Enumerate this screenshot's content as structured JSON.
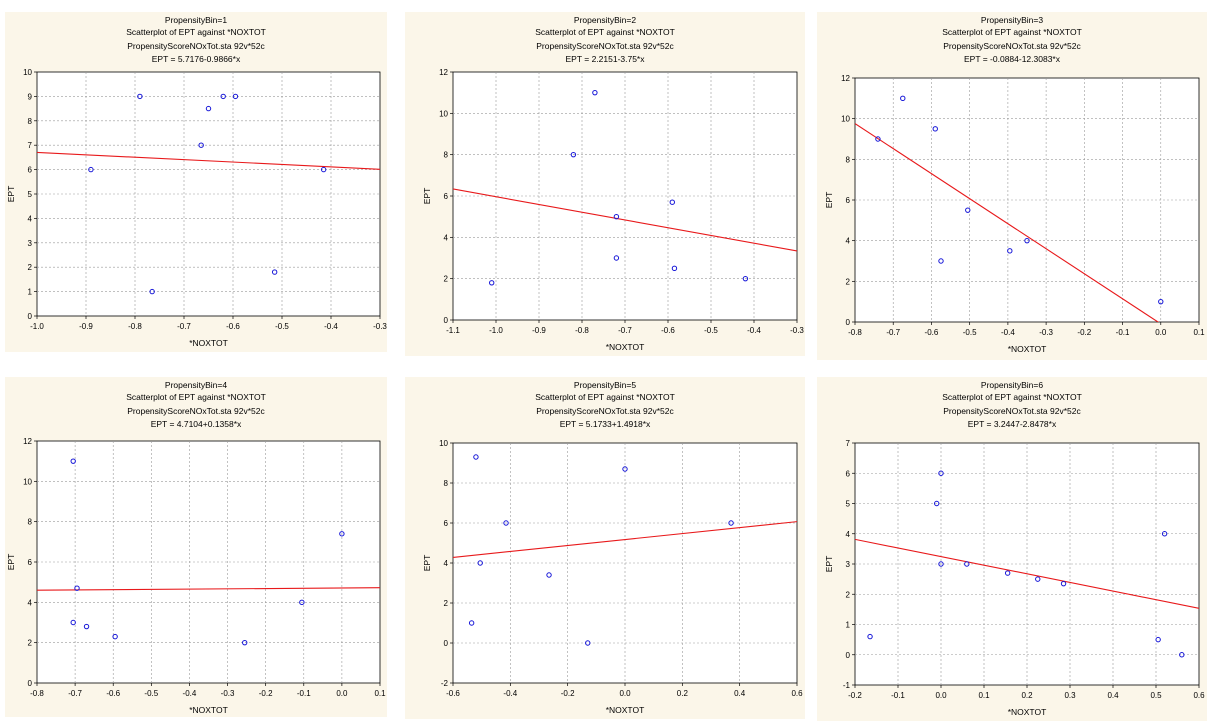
{
  "chart_data": [
    {
      "type": "scatter",
      "title": "PropensityBin=1",
      "subtitle": "Scatterplot of EPT against *NOXTOT",
      "source": "PropensityScoreNOxTot.sta 92v*52c",
      "equation": "EPT = 5.7176-0.9866*x",
      "xlabel": "*NOXTOT",
      "ylabel": "EPT",
      "xlim": [
        -1.0,
        -0.3
      ],
      "ylim": [
        0,
        10
      ],
      "xticks": [
        -1.0,
        -0.9,
        -0.8,
        -0.7,
        -0.6,
        -0.5,
        -0.4,
        -0.3
      ],
      "xtick_labels": [
        "-1.0",
        "-0.9",
        "-0.8",
        "-0.7",
        "-0.6",
        "-0.5",
        "-0.4",
        "-0.3"
      ],
      "yticks": [
        0,
        1,
        2,
        3,
        4,
        5,
        6,
        7,
        8,
        9,
        10
      ],
      "ytick_labels": [
        "0",
        "1",
        "2",
        "3",
        "4",
        "5",
        "6",
        "7",
        "8",
        "9",
        "10"
      ],
      "regression": {
        "intercept": 5.7176,
        "slope": -0.9866
      },
      "points": [
        [
          -0.89,
          6
        ],
        [
          -0.79,
          9
        ],
        [
          -0.765,
          1
        ],
        [
          -0.665,
          7
        ],
        [
          -0.65,
          8.5
        ],
        [
          -0.62,
          9
        ],
        [
          -0.595,
          9
        ],
        [
          -0.515,
          1.8
        ],
        [
          -0.415,
          6
        ]
      ],
      "grid": true
    },
    {
      "type": "scatter",
      "title": "PropensityBin=2",
      "subtitle": "Scatterplot of EPT against *NOXTOT",
      "source": "PropensityScoreNOxTot.sta 92v*52c",
      "equation": "EPT = 2.2151-3.75*x",
      "xlabel": "*NOXTOT",
      "ylabel": "EPT",
      "xlim": [
        -1.1,
        -0.3
      ],
      "ylim": [
        0,
        12
      ],
      "xticks": [
        -1.1,
        -1.0,
        -0.9,
        -0.8,
        -0.7,
        -0.6,
        -0.5,
        -0.4,
        -0.3
      ],
      "xtick_labels": [
        "-1.1",
        "-1.0",
        "-0.9",
        "-0.8",
        "-0.7",
        "-0.6",
        "-0.5",
        "-0.4",
        "-0.3"
      ],
      "yticks": [
        0,
        2,
        4,
        6,
        8,
        10,
        12
      ],
      "ytick_labels": [
        "0",
        "2",
        "4",
        "6",
        "8",
        "10",
        "12"
      ],
      "regression": {
        "intercept": 2.2151,
        "slope": -3.75
      },
      "points": [
        [
          -1.01,
          1.8
        ],
        [
          -0.82,
          8
        ],
        [
          -0.77,
          11
        ],
        [
          -0.72,
          5
        ],
        [
          -0.72,
          3
        ],
        [
          -0.59,
          5.7
        ],
        [
          -0.585,
          2.5
        ],
        [
          -0.42,
          2
        ]
      ],
      "grid": true
    },
    {
      "type": "scatter",
      "title": "PropensityBin=3",
      "subtitle": "Scatterplot of EPT against *NOXTOT",
      "source": "PropensityScoreNOxTot.sta 92v*52c",
      "equation": "EPT = -0.0884-12.3083*x",
      "xlabel": "*NOXTOT",
      "ylabel": "EPT",
      "xlim": [
        -0.8,
        0.1
      ],
      "ylim": [
        0,
        12
      ],
      "xticks": [
        -0.8,
        -0.7,
        -0.6,
        -0.5,
        -0.4,
        -0.3,
        -0.2,
        -0.1,
        0.0,
        0.1
      ],
      "xtick_labels": [
        "-0.8",
        "-0.7",
        "-0.6",
        "-0.5",
        "-0.4",
        "-0.3",
        "-0.2",
        "-0.1",
        "0.0",
        "0.1"
      ],
      "yticks": [
        0,
        2,
        4,
        6,
        8,
        10,
        12
      ],
      "ytick_labels": [
        "0",
        "2",
        "4",
        "6",
        "8",
        "10",
        "12"
      ],
      "regression": {
        "intercept": -0.0884,
        "slope": -12.3083
      },
      "points": [
        [
          -0.74,
          9
        ],
        [
          -0.675,
          11
        ],
        [
          -0.59,
          9.5
        ],
        [
          -0.575,
          3
        ],
        [
          -0.505,
          5.5
        ],
        [
          -0.395,
          3.5
        ],
        [
          -0.35,
          4
        ],
        [
          0.0,
          1
        ]
      ],
      "grid": true
    },
    {
      "type": "scatter",
      "title": "PropensityBin=4",
      "subtitle": "Scatterplot of EPT against *NOXTOT",
      "source": "PropensityScoreNOxTot.sta 92v*52c",
      "equation": "EPT = 4.7104+0.1358*x",
      "xlabel": "*NOXTOT",
      "ylabel": "EPT",
      "xlim": [
        -0.8,
        0.1
      ],
      "ylim": [
        0,
        12
      ],
      "xticks": [
        -0.8,
        -0.7,
        -0.6,
        -0.5,
        -0.4,
        -0.3,
        -0.2,
        -0.1,
        0.0,
        0.1
      ],
      "xtick_labels": [
        "-0.8",
        "-0.7",
        "-0.6",
        "-0.5",
        "-0.4",
        "-0.3",
        "-0.2",
        "-0.1",
        "0.0",
        "0.1"
      ],
      "yticks": [
        0,
        2,
        4,
        6,
        8,
        10,
        12
      ],
      "ytick_labels": [
        "0",
        "2",
        "4",
        "6",
        "8",
        "10",
        "12"
      ],
      "regression": {
        "intercept": 4.7104,
        "slope": 0.1358
      },
      "points": [
        [
          -0.705,
          11
        ],
        [
          -0.705,
          3
        ],
        [
          -0.695,
          4.7
        ],
        [
          -0.67,
          2.8
        ],
        [
          -0.595,
          2.3
        ],
        [
          -0.255,
          2
        ],
        [
          -0.105,
          4
        ],
        [
          0.0,
          7.4
        ]
      ],
      "grid": true
    },
    {
      "type": "scatter",
      "title": "PropensityBin=5",
      "subtitle": "Scatterplot of EPT against *NOXTOT",
      "source": "PropensityScoreNOxTot.sta 92v*52c",
      "equation": "EPT = 5.1733+1.4918*x",
      "xlabel": "*NOXTOT",
      "ylabel": "EPT",
      "xlim": [
        -0.6,
        0.6
      ],
      "ylim": [
        -2,
        10
      ],
      "xticks": [
        -0.6,
        -0.4,
        -0.2,
        0.0,
        0.2,
        0.4,
        0.6
      ],
      "xtick_labels": [
        "-0.6",
        "-0.4",
        "-0.2",
        "0.0",
        "0.2",
        "0.4",
        "0.6"
      ],
      "yticks": [
        -2,
        0,
        2,
        4,
        6,
        8,
        10
      ],
      "ytick_labels": [
        "-2",
        "0",
        "2",
        "4",
        "6",
        "8",
        "10"
      ],
      "regression": {
        "intercept": 5.1733,
        "slope": 1.4918
      },
      "points": [
        [
          -0.535,
          1
        ],
        [
          -0.52,
          9.3
        ],
        [
          -0.505,
          4
        ],
        [
          -0.415,
          6
        ],
        [
          -0.265,
          3.4
        ],
        [
          -0.13,
          0
        ],
        [
          0.0,
          8.7
        ],
        [
          0.37,
          6
        ]
      ],
      "grid": true
    },
    {
      "type": "scatter",
      "title": "PropensityBin=6",
      "subtitle": "Scatterplot of EPT against *NOXTOT",
      "source": "PropensityScoreNOxTot.sta 92v*52c",
      "equation": "EPT = 3.2447-2.8478*x",
      "xlabel": "*NOXTOT",
      "ylabel": "EPT",
      "xlim": [
        -0.2,
        0.6
      ],
      "ylim": [
        -1,
        7
      ],
      "xticks": [
        -0.2,
        -0.1,
        0.0,
        0.1,
        0.2,
        0.3,
        0.4,
        0.5,
        0.6
      ],
      "xtick_labels": [
        "-0.2",
        "-0.1",
        "0.0",
        "0.1",
        "0.2",
        "0.3",
        "0.4",
        "0.5",
        "0.6"
      ],
      "yticks": [
        -1,
        0,
        1,
        2,
        3,
        4,
        5,
        6,
        7
      ],
      "ytick_labels": [
        "-1",
        "0",
        "1",
        "2",
        "3",
        "4",
        "5",
        "6",
        "7"
      ],
      "regression": {
        "intercept": 3.2447,
        "slope": -2.8478
      },
      "points": [
        [
          -0.165,
          0.6
        ],
        [
          -0.01,
          5
        ],
        [
          0.0,
          6
        ],
        [
          0.0,
          3
        ],
        [
          0.06,
          3
        ],
        [
          0.155,
          2.7
        ],
        [
          0.225,
          2.5
        ],
        [
          0.285,
          2.35
        ],
        [
          0.505,
          0.5
        ],
        [
          0.52,
          4
        ],
        [
          0.56,
          0
        ]
      ],
      "grid": true
    }
  ]
}
